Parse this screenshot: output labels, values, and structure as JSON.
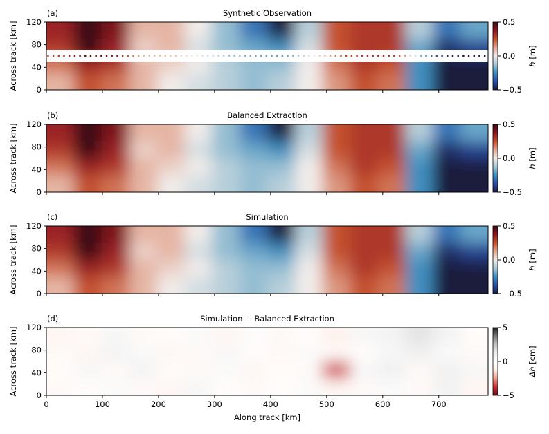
{
  "chart_data": [
    {
      "type": "heatmap",
      "panel_label": "(a)",
      "title": "Synthetic Observation",
      "xlabel": "",
      "ylabel": "Across track [km]",
      "xlim": [
        0,
        788
      ],
      "ylim": [
        0,
        120
      ],
      "yticks": [
        "0",
        "40",
        "80",
        "120"
      ],
      "colorbar": {
        "label_var": "h",
        "label_unit": " [m]",
        "range": [
          -0.5,
          0.5
        ],
        "ticks": [
          "0.5",
          "0.0",
          "−0.5"
        ],
        "colormap": "balance"
      },
      "gap_band_km": [
        50,
        70
      ],
      "nadir_track_km": 60,
      "x_centers_km": [
        25,
        75,
        125,
        175,
        225,
        275,
        325,
        375,
        425,
        475,
        525,
        575,
        625,
        675,
        725,
        775
      ],
      "y_centers_km": [
        105,
        75,
        45,
        15
      ],
      "values": [
        [
          0.35,
          0.5,
          0.4,
          0.1,
          0.1,
          0.0,
          -0.15,
          -0.3,
          -0.5,
          -0.1,
          0.25,
          0.3,
          0.3,
          -0.1,
          -0.3,
          -0.2
        ],
        [
          0.3,
          0.5,
          0.35,
          0.05,
          0.1,
          -0.05,
          -0.15,
          -0.2,
          -0.25,
          -0.05,
          0.25,
          0.3,
          0.3,
          -0.2,
          -0.45,
          -0.4
        ],
        [
          0.2,
          0.35,
          0.3,
          0.1,
          0.05,
          0.0,
          -0.1,
          -0.15,
          -0.15,
          0.0,
          0.2,
          0.3,
          0.25,
          -0.25,
          -0.5,
          -0.5
        ],
        [
          0.1,
          0.25,
          0.2,
          0.1,
          0.0,
          -0.05,
          -0.1,
          -0.15,
          -0.1,
          0.0,
          0.15,
          0.25,
          0.2,
          -0.25,
          -0.5,
          -0.5
        ]
      ]
    },
    {
      "type": "heatmap",
      "panel_label": "(b)",
      "title": "Balanced Extraction",
      "ylabel": "Across track [km]",
      "xlim": [
        0,
        788
      ],
      "ylim": [
        0,
        120
      ],
      "yticks": [
        "0",
        "40",
        "80",
        "120"
      ],
      "colorbar": {
        "label_var": "h",
        "label_unit": " [m]",
        "range": [
          -0.5,
          0.5
        ],
        "ticks": [
          "0.5",
          "0.0",
          "−0.5"
        ],
        "colormap": "balance"
      },
      "x_centers_km": [
        25,
        75,
        125,
        175,
        225,
        275,
        325,
        375,
        425,
        475,
        525,
        575,
        625,
        675,
        725,
        775
      ],
      "y_centers_km": [
        105,
        75,
        45,
        15
      ],
      "values": [
        [
          0.35,
          0.5,
          0.4,
          0.1,
          0.1,
          0.0,
          -0.15,
          -0.3,
          -0.5,
          -0.1,
          0.25,
          0.3,
          0.3,
          -0.1,
          -0.3,
          -0.2
        ],
        [
          0.3,
          0.5,
          0.35,
          0.05,
          0.1,
          -0.05,
          -0.15,
          -0.2,
          -0.25,
          -0.05,
          0.25,
          0.3,
          0.3,
          -0.2,
          -0.45,
          -0.4
        ],
        [
          0.2,
          0.35,
          0.3,
          0.1,
          0.05,
          0.0,
          -0.1,
          -0.15,
          -0.15,
          0.0,
          0.2,
          0.3,
          0.25,
          -0.25,
          -0.5,
          -0.5
        ],
        [
          0.1,
          0.25,
          0.2,
          0.1,
          0.0,
          -0.05,
          -0.1,
          -0.15,
          -0.1,
          0.0,
          0.15,
          0.25,
          0.2,
          -0.25,
          -0.5,
          -0.5
        ]
      ]
    },
    {
      "type": "heatmap",
      "panel_label": "(c)",
      "title": "Simulation",
      "ylabel": "Across track [km]",
      "xlim": [
        0,
        788
      ],
      "ylim": [
        0,
        120
      ],
      "yticks": [
        "0",
        "40",
        "80",
        "120"
      ],
      "colorbar": {
        "label_var": "h",
        "label_unit": " [m]",
        "range": [
          -0.5,
          0.5
        ],
        "ticks": [
          "0.5",
          "0.0",
          "−0.5"
        ],
        "colormap": "balance"
      },
      "x_centers_km": [
        25,
        75,
        125,
        175,
        225,
        275,
        325,
        375,
        425,
        475,
        525,
        575,
        625,
        675,
        725,
        775
      ],
      "y_centers_km": [
        105,
        75,
        45,
        15
      ],
      "values": [
        [
          0.35,
          0.5,
          0.4,
          0.1,
          0.1,
          0.0,
          -0.15,
          -0.3,
          -0.5,
          -0.1,
          0.25,
          0.3,
          0.3,
          -0.1,
          -0.3,
          -0.2
        ],
        [
          0.3,
          0.5,
          0.35,
          0.05,
          0.1,
          -0.05,
          -0.15,
          -0.2,
          -0.25,
          -0.05,
          0.25,
          0.3,
          0.3,
          -0.2,
          -0.45,
          -0.4
        ],
        [
          0.2,
          0.35,
          0.3,
          0.1,
          0.05,
          0.0,
          -0.1,
          -0.15,
          -0.15,
          0.0,
          0.2,
          0.3,
          0.25,
          -0.25,
          -0.5,
          -0.5
        ],
        [
          0.1,
          0.25,
          0.2,
          0.1,
          0.0,
          -0.05,
          -0.1,
          -0.15,
          -0.1,
          0.0,
          0.15,
          0.25,
          0.2,
          -0.25,
          -0.5,
          -0.5
        ]
      ]
    },
    {
      "type": "heatmap",
      "panel_label": "(d)",
      "title": "Simulation − Balanced Extraction",
      "xlabel": "Along track [km]",
      "ylabel": "Across track [km]",
      "xlim": [
        0,
        788
      ],
      "ylim": [
        0,
        120
      ],
      "xticks": [
        "0",
        "100",
        "200",
        "300",
        "400",
        "500",
        "600",
        "700"
      ],
      "yticks": [
        "0",
        "40",
        "80",
        "120"
      ],
      "colorbar": {
        "label_var": "Δh",
        "label_unit": " [cm]",
        "range": [
          -5,
          5
        ],
        "ticks": [
          "5",
          "0",
          "−5"
        ],
        "colormap": "reds-white-greys"
      },
      "x_centers_km": [
        25,
        75,
        125,
        175,
        225,
        275,
        325,
        375,
        425,
        475,
        525,
        575,
        625,
        675,
        725,
        775
      ],
      "y_centers_km": [
        105,
        75,
        45,
        15
      ],
      "values": [
        [
          -0.8,
          -0.5,
          0.5,
          -0.5,
          -0.3,
          0.3,
          -0.8,
          0.2,
          -0.5,
          -0.3,
          -1.2,
          0.5,
          0.8,
          1.5,
          0.8,
          -0.3
        ],
        [
          -0.5,
          -0.8,
          0.8,
          0.3,
          -0.8,
          -0.5,
          0.5,
          -0.3,
          -0.6,
          0.3,
          -0.5,
          -0.3,
          0.5,
          1.0,
          0.3,
          -0.5
        ],
        [
          -0.3,
          0.5,
          -0.5,
          0.8,
          -0.3,
          -0.5,
          0.3,
          -0.8,
          -0.3,
          -0.5,
          -3.5,
          0.5,
          1.0,
          -0.5,
          1.0,
          0.5
        ],
        [
          -0.5,
          -0.3,
          0.3,
          -0.5,
          -0.8,
          0.5,
          -0.3,
          -0.5,
          -0.3,
          0.3,
          -0.8,
          -0.5,
          0.3,
          -0.5,
          0.8,
          -0.8
        ]
      ]
    }
  ],
  "colors": {
    "balance": [
      "#1a1c3e",
      "#2a4ea8",
      "#3f8fc0",
      "#a9c8d6",
      "#f1ecea",
      "#e2a793",
      "#c4512f",
      "#8e1422",
      "#3a0a12"
    ],
    "diff": [
      "#6b0a16",
      "#c8323a",
      "#f0a08a",
      "#fdf1ec",
      "#ffffff",
      "#ececec",
      "#c4c4c4",
      "#7a7a7a",
      "#1e1e1e"
    ]
  }
}
